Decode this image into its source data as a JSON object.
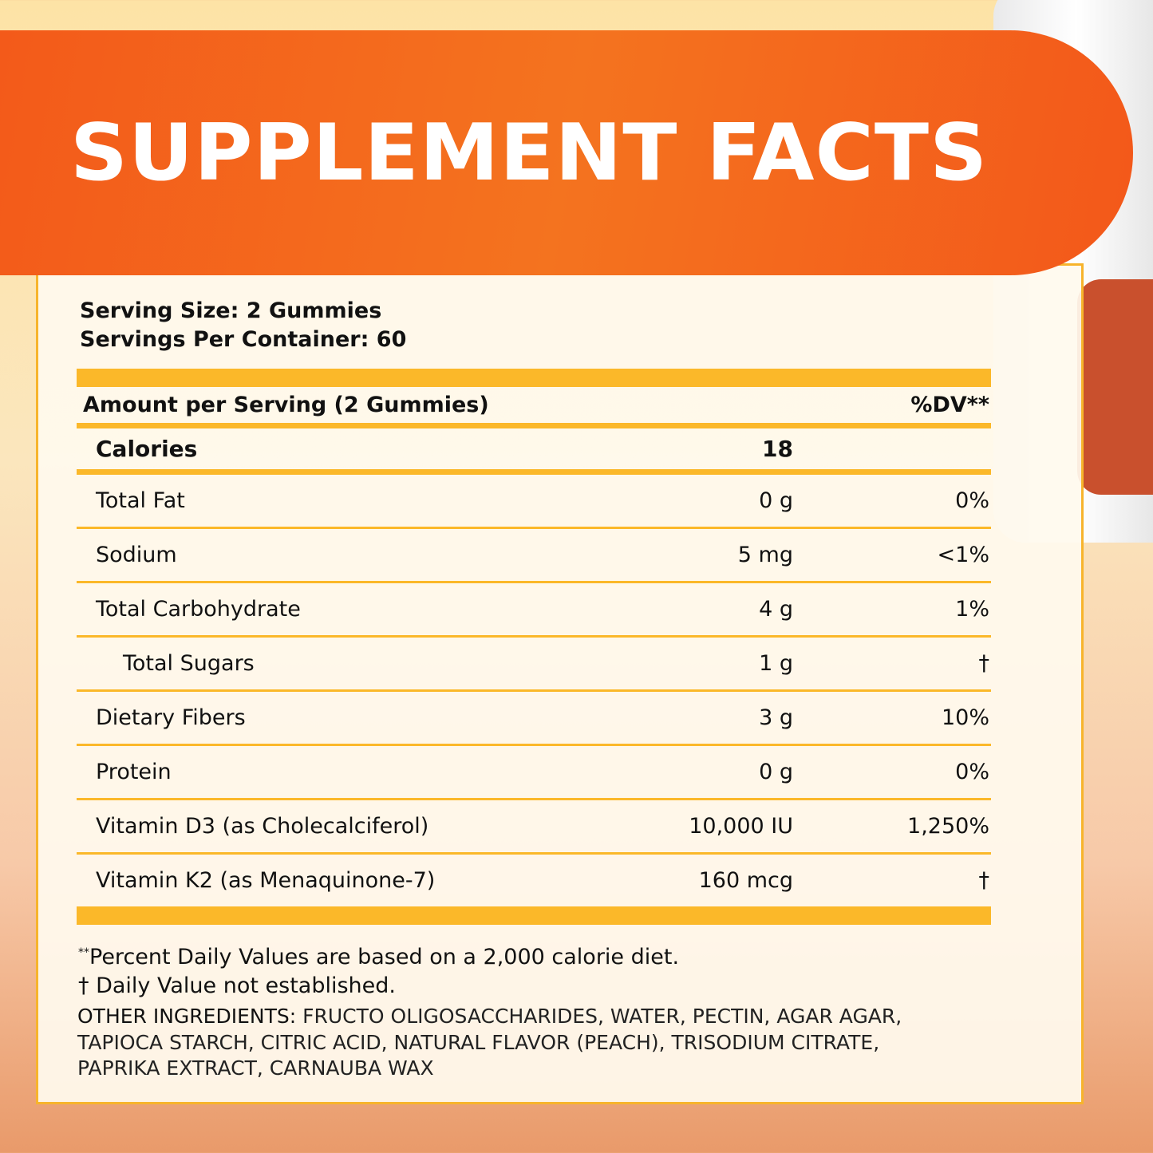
{
  "title": "SUPPLEMENT FACTS",
  "serving": {
    "size": "Serving Size: 2 Gummies",
    "per_container": "Servings Per Container: 60"
  },
  "table": {
    "header": {
      "label": "Amount per Serving (2 Gummies)",
      "dv": "%DV**"
    },
    "calories": {
      "label": "Calories",
      "amount": "18"
    },
    "rows": [
      {
        "name": "Total Fat",
        "amount": "0 g",
        "dv": "0%"
      },
      {
        "name": "Sodium",
        "amount": "5 mg",
        "dv": "<1%"
      },
      {
        "name": "Total Carbohydrate",
        "amount": "4 g",
        "dv": "1%"
      },
      {
        "name": "Total Sugars",
        "amount": "1 g",
        "dv": "†"
      },
      {
        "name": "Dietary Fibers",
        "amount": "3 g",
        "dv": "10%"
      },
      {
        "name": "Protein",
        "amount": "0 g",
        "dv": "0%"
      },
      {
        "name": "Vitamin D3 (as Cholecalciferol)",
        "amount": "10,000 IU",
        "dv": "1,250%"
      },
      {
        "name": "Vitamin K2 (as Menaquinone-7)",
        "amount": "160 mcg",
        "dv": "†"
      }
    ]
  },
  "footnotes": {
    "dv_mark": "**",
    "dv_note": "Percent Daily Values are based on a 2,000 calorie diet.",
    "not_established": "† Daily Value not established."
  },
  "other_ingredients": {
    "label": "OTHER INGREDIENTS:",
    "text": " FRUCTO OLIGOSACCHARIDES, WATER, PECTIN, AGAR AGAR, TAPIOCA STARCH, CITRIC ACID, NATURAL FLAVOR (PEACH), TRISODIUM CITRATE, PAPRIKA EXTRACT, CARNAUBA WAX"
  },
  "colors": {
    "banner": "#f35a1a",
    "rule": "#fbb829",
    "background": "#fde3a6"
  }
}
